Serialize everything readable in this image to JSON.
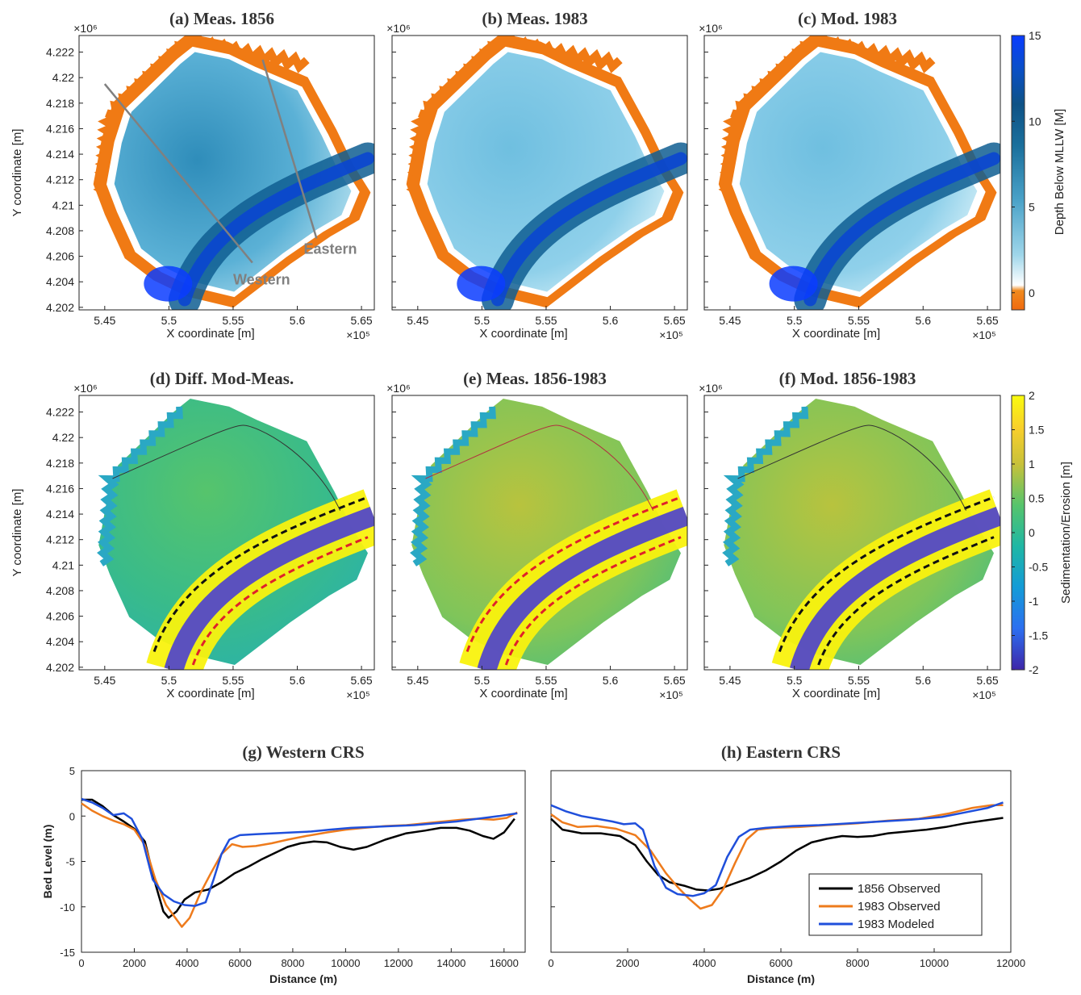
{
  "map_panels": {
    "x_ticks": [
      "5.45",
      "5.5",
      "5.55",
      "5.6",
      "5.65"
    ],
    "x_exponent": "×10⁵",
    "y_ticks": [
      "4.222",
      "4.22",
      "4.218",
      "4.216",
      "4.214",
      "4.212",
      "4.21",
      "4.208",
      "4.206",
      "4.204",
      "4.202"
    ],
    "y_exponent": "×10⁶",
    "xlabel": "X coordinate [m]",
    "ylabel": "Y coordinate [m]",
    "depth_colorbar": {
      "label": "Depth Below MLLW [M]",
      "ticks": [
        "15",
        "10",
        "5",
        "0"
      ]
    },
    "change_colorbar": {
      "label": "Sedimentation/Erosion [m]",
      "ticks": [
        "2",
        "1.5",
        "1",
        "0.5",
        "0",
        "-0.5",
        "-1",
        "-1.5",
        "-2"
      ]
    },
    "transects": {
      "western": "Western",
      "eastern": "Eastern"
    },
    "titles": {
      "a": "(a) Meas. 1856",
      "b": "(b) Meas. 1983",
      "c": "(c) Mod. 1983",
      "d": "(d) Diff. Mod-Meas.",
      "e": "(e) Meas. 1856-1983",
      "f": "(f) Mod. 1856-1983"
    }
  },
  "chart_data": [
    {
      "type": "line",
      "title": "(g) Western CRS",
      "xlabel": "Distance (m)",
      "ylabel": "Bed Level (m)",
      "xlim": [
        0,
        16800
      ],
      "ylim": [
        -15,
        5
      ],
      "x_ticks": [
        "0",
        "2000",
        "4000",
        "6000",
        "8000",
        "10000",
        "12000",
        "14000",
        "16000"
      ],
      "y_ticks": [
        "5",
        "0",
        "-5",
        "-10",
        "-15"
      ],
      "series": [
        {
          "name": "1856 Observed",
          "color": "#000000",
          "points": [
            [
              0,
              1.8
            ],
            [
              400,
              1.8
            ],
            [
              800,
              1.1
            ],
            [
              1200,
              0.1
            ],
            [
              1600,
              -0.6
            ],
            [
              2000,
              -1.4
            ],
            [
              2400,
              -2.8
            ],
            [
              2800,
              -7.5
            ],
            [
              3100,
              -10.5
            ],
            [
              3300,
              -11.2
            ],
            [
              3600,
              -10.5
            ],
            [
              3900,
              -9.2
            ],
            [
              4300,
              -8.4
            ],
            [
              4800,
              -8.1
            ],
            [
              5300,
              -7.3
            ],
            [
              5800,
              -6.3
            ],
            [
              6300,
              -5.6
            ],
            [
              6800,
              -4.8
            ],
            [
              7300,
              -4.1
            ],
            [
              7800,
              -3.4
            ],
            [
              8300,
              -3.0
            ],
            [
              8800,
              -2.8
            ],
            [
              9300,
              -2.9
            ],
            [
              9800,
              -3.4
            ],
            [
              10300,
              -3.7
            ],
            [
              10800,
              -3.4
            ],
            [
              11500,
              -2.6
            ],
            [
              12300,
              -1.9
            ],
            [
              13000,
              -1.6
            ],
            [
              13600,
              -1.3
            ],
            [
              14200,
              -1.3
            ],
            [
              14700,
              -1.6
            ],
            [
              15200,
              -2.2
            ],
            [
              15600,
              -2.5
            ],
            [
              16000,
              -1.8
            ],
            [
              16400,
              -0.3
            ]
          ]
        },
        {
          "name": "1983 Observed",
          "color": "#ee7b1c",
          "points": [
            [
              0,
              1.4
            ],
            [
              400,
              0.6
            ],
            [
              800,
              0.0
            ],
            [
              1200,
              -0.5
            ],
            [
              1600,
              -0.9
            ],
            [
              2000,
              -1.5
            ],
            [
              2400,
              -3.2
            ],
            [
              2800,
              -7.0
            ],
            [
              3200,
              -9.8
            ],
            [
              3500,
              -11.0
            ],
            [
              3800,
              -12.2
            ],
            [
              4100,
              -11.2
            ],
            [
              4500,
              -8.5
            ],
            [
              4900,
              -6.3
            ],
            [
              5300,
              -4.2
            ],
            [
              5700,
              -3.1
            ],
            [
              6100,
              -3.4
            ],
            [
              6600,
              -3.3
            ],
            [
              7200,
              -3.0
            ],
            [
              7800,
              -2.6
            ],
            [
              8500,
              -2.2
            ],
            [
              9300,
              -1.8
            ],
            [
              10000,
              -1.5
            ],
            [
              10700,
              -1.3
            ],
            [
              11500,
              -1.1
            ],
            [
              12300,
              -1.0
            ],
            [
              13000,
              -0.8
            ],
            [
              13700,
              -0.6
            ],
            [
              14400,
              -0.4
            ],
            [
              15000,
              -0.3
            ],
            [
              15600,
              -0.4
            ],
            [
              16100,
              -0.2
            ],
            [
              16500,
              0.4
            ]
          ]
        },
        {
          "name": "1983 Modeled",
          "color": "#1f4fdb",
          "points": [
            [
              0,
              1.9
            ],
            [
              400,
              1.5
            ],
            [
              800,
              0.9
            ],
            [
              1200,
              0.1
            ],
            [
              1600,
              0.3
            ],
            [
              1900,
              -0.3
            ],
            [
              2300,
              -2.5
            ],
            [
              2700,
              -7.0
            ],
            [
              3100,
              -8.6
            ],
            [
              3500,
              -9.4
            ],
            [
              3900,
              -9.8
            ],
            [
              4300,
              -9.9
            ],
            [
              4700,
              -9.5
            ],
            [
              5000,
              -7.0
            ],
            [
              5300,
              -4.2
            ],
            [
              5600,
              -2.6
            ],
            [
              6000,
              -2.1
            ],
            [
              6600,
              -2.0
            ],
            [
              7300,
              -1.9
            ],
            [
              8000,
              -1.8
            ],
            [
              8700,
              -1.7
            ],
            [
              9400,
              -1.5
            ],
            [
              10200,
              -1.3
            ],
            [
              11000,
              -1.2
            ],
            [
              11800,
              -1.1
            ],
            [
              12600,
              -1.0
            ],
            [
              13400,
              -0.8
            ],
            [
              14200,
              -0.6
            ],
            [
              15000,
              -0.3
            ],
            [
              15800,
              0.0
            ],
            [
              16500,
              0.3
            ]
          ]
        }
      ]
    },
    {
      "type": "line",
      "title": "(h) Eastern CRS",
      "xlabel": "Distance (m)",
      "ylabel": "",
      "xlim": [
        0,
        12000
      ],
      "ylim": [
        -15,
        5
      ],
      "x_ticks": [
        "0",
        "2000",
        "4000",
        "6000",
        "8000",
        "10000",
        "12000"
      ],
      "legend_position": "bottom-right",
      "series": [
        {
          "name": "1856 Observed",
          "color": "#000000",
          "points": [
            [
              0,
              -0.3
            ],
            [
              300,
              -1.5
            ],
            [
              800,
              -1.9
            ],
            [
              1300,
              -1.9
            ],
            [
              1800,
              -2.2
            ],
            [
              2200,
              -3.2
            ],
            [
              2500,
              -5.0
            ],
            [
              2800,
              -6.5
            ],
            [
              3100,
              -7.3
            ],
            [
              3500,
              -7.7
            ],
            [
              3800,
              -8.1
            ],
            [
              4100,
              -8.2
            ],
            [
              4400,
              -8.0
            ],
            [
              4800,
              -7.4
            ],
            [
              5200,
              -6.8
            ],
            [
              5600,
              -6.0
            ],
            [
              6000,
              -5.0
            ],
            [
              6400,
              -3.8
            ],
            [
              6800,
              -2.9
            ],
            [
              7200,
              -2.5
            ],
            [
              7600,
              -2.2
            ],
            [
              8000,
              -2.3
            ],
            [
              8400,
              -2.2
            ],
            [
              8800,
              -1.9
            ],
            [
              9300,
              -1.7
            ],
            [
              9800,
              -1.5
            ],
            [
              10300,
              -1.2
            ],
            [
              10800,
              -0.8
            ],
            [
              11300,
              -0.5
            ],
            [
              11800,
              -0.2
            ]
          ]
        },
        {
          "name": "1983 Observed",
          "color": "#ee7b1c",
          "points": [
            [
              0,
              0.2
            ],
            [
              300,
              -0.7
            ],
            [
              700,
              -1.2
            ],
            [
              1200,
              -1.1
            ],
            [
              1700,
              -1.4
            ],
            [
              2200,
              -2.1
            ],
            [
              2600,
              -3.8
            ],
            [
              3000,
              -6.3
            ],
            [
              3300,
              -7.8
            ],
            [
              3600,
              -9.1
            ],
            [
              3900,
              -10.2
            ],
            [
              4200,
              -9.8
            ],
            [
              4500,
              -8.0
            ],
            [
              4800,
              -5.2
            ],
            [
              5100,
              -2.6
            ],
            [
              5400,
              -1.5
            ],
            [
              5800,
              -1.3
            ],
            [
              6500,
              -1.2
            ],
            [
              7200,
              -1.0
            ],
            [
              8000,
              -0.8
            ],
            [
              8800,
              -0.5
            ],
            [
              9600,
              -0.3
            ],
            [
              10400,
              0.3
            ],
            [
              11000,
              0.9
            ],
            [
              11500,
              1.2
            ],
            [
              11800,
              1.2
            ]
          ]
        },
        {
          "name": "1983 Modeled",
          "color": "#1f4fdb",
          "points": [
            [
              0,
              1.2
            ],
            [
              400,
              0.5
            ],
            [
              800,
              0.0
            ],
            [
              1200,
              -0.3
            ],
            [
              1600,
              -0.6
            ],
            [
              1900,
              -0.9
            ],
            [
              2200,
              -0.8
            ],
            [
              2400,
              -1.5
            ],
            [
              2700,
              -5.5
            ],
            [
              3000,
              -7.9
            ],
            [
              3300,
              -8.6
            ],
            [
              3700,
              -8.8
            ],
            [
              4000,
              -8.5
            ],
            [
              4300,
              -7.6
            ],
            [
              4600,
              -4.5
            ],
            [
              4900,
              -2.3
            ],
            [
              5200,
              -1.5
            ],
            [
              5600,
              -1.3
            ],
            [
              6300,
              -1.1
            ],
            [
              7000,
              -1.0
            ],
            [
              7800,
              -0.8
            ],
            [
              8600,
              -0.6
            ],
            [
              9400,
              -0.4
            ],
            [
              10200,
              -0.1
            ],
            [
              10800,
              0.4
            ],
            [
              11400,
              0.9
            ],
            [
              11800,
              1.5
            ]
          ]
        }
      ]
    }
  ]
}
